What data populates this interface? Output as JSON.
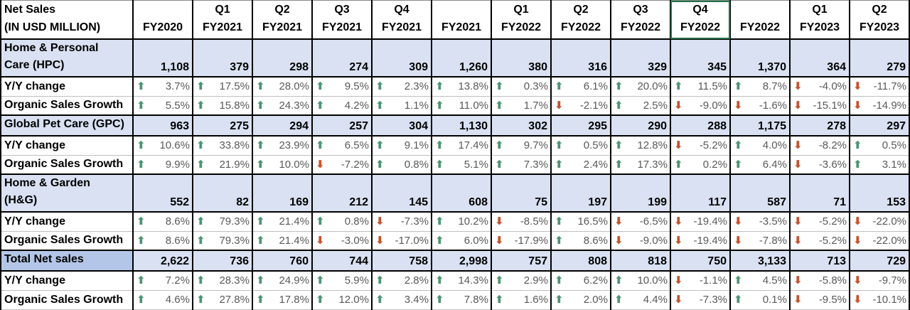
{
  "colors": {
    "up_arrow": "#4D9472",
    "down_arrow": "#C6522D",
    "section_fill": "#D9E1F2",
    "total_label_fill": "#B4C6E7",
    "selection_outline": "#217346",
    "pct_text": "#595959"
  },
  "icons": {
    "up_arrow_icon": "⬆",
    "down_arrow_icon": "⬇"
  },
  "table": {
    "title_line1": "Net Sales",
    "title_line2": "(IN USD MILLION)",
    "row_labels": {
      "yoy": "Y/Y change",
      "organic": "Organic Sales Growth"
    },
    "columns": [
      {
        "q": "",
        "fy": "FY2020"
      },
      {
        "q": "Q1",
        "fy": "FY2021"
      },
      {
        "q": "Q2",
        "fy": "FY2021"
      },
      {
        "q": "Q3",
        "fy": "FY2021"
      },
      {
        "q": "Q4",
        "fy": "FY2021"
      },
      {
        "q": "",
        "fy": "FY2021"
      },
      {
        "q": "Q1",
        "fy": "FY2022"
      },
      {
        "q": "Q2",
        "fy": "FY2022"
      },
      {
        "q": "Q3",
        "fy": "FY2022"
      },
      {
        "q": "Q4",
        "fy": "FY2022",
        "selected": true
      },
      {
        "q": "",
        "fy": "FY2022"
      },
      {
        "q": "Q1",
        "fy": "FY2023"
      },
      {
        "q": "Q2",
        "fy": "FY2023"
      }
    ],
    "sections": [
      {
        "id": "hpc",
        "label_lines": [
          "Home & Personal",
          "Care (HPC)"
        ],
        "values": [
          "1,108",
          "379",
          "298",
          "274",
          "309",
          "1,260",
          "380",
          "316",
          "329",
          "345",
          "1,370",
          "364",
          "279"
        ],
        "yoy": [
          {
            "dir": "up",
            "v": "3.7%"
          },
          {
            "dir": "up",
            "v": "17.5%"
          },
          {
            "dir": "up",
            "v": "28.0%"
          },
          {
            "dir": "up",
            "v": "9.5%"
          },
          {
            "dir": "up",
            "v": "2.3%"
          },
          {
            "dir": "up",
            "v": "13.8%"
          },
          {
            "dir": "up",
            "v": "0.3%"
          },
          {
            "dir": "up",
            "v": "6.1%"
          },
          {
            "dir": "up",
            "v": "20.0%"
          },
          {
            "dir": "up",
            "v": "11.5%"
          },
          {
            "dir": "up",
            "v": "8.7%"
          },
          {
            "dir": "down",
            "v": "-4.0%"
          },
          {
            "dir": "down",
            "v": "-11.7%"
          }
        ],
        "organic": [
          {
            "dir": "up",
            "v": "5.5%"
          },
          {
            "dir": "up",
            "v": "15.8%"
          },
          {
            "dir": "up",
            "v": "24.3%"
          },
          {
            "dir": "up",
            "v": "4.2%"
          },
          {
            "dir": "up",
            "v": "1.1%"
          },
          {
            "dir": "up",
            "v": "11.0%"
          },
          {
            "dir": "up",
            "v": "1.7%"
          },
          {
            "dir": "down",
            "v": "-2.1%"
          },
          {
            "dir": "up",
            "v": "2.5%"
          },
          {
            "dir": "down",
            "v": "-9.0%"
          },
          {
            "dir": "down",
            "v": "-1.6%"
          },
          {
            "dir": "down",
            "v": "-15.1%"
          },
          {
            "dir": "down",
            "v": "-14.9%"
          }
        ]
      },
      {
        "id": "gpc",
        "label_lines": [
          "Global Pet Care (GPC)"
        ],
        "values": [
          "963",
          "275",
          "294",
          "257",
          "304",
          "1,130",
          "302",
          "295",
          "290",
          "288",
          "1,175",
          "278",
          "297"
        ],
        "yoy": [
          {
            "dir": "up",
            "v": "10.6%"
          },
          {
            "dir": "up",
            "v": "33.8%"
          },
          {
            "dir": "up",
            "v": "23.9%"
          },
          {
            "dir": "up",
            "v": "6.5%"
          },
          {
            "dir": "up",
            "v": "9.1%"
          },
          {
            "dir": "up",
            "v": "17.4%"
          },
          {
            "dir": "up",
            "v": "9.7%"
          },
          {
            "dir": "up",
            "v": "0.5%"
          },
          {
            "dir": "up",
            "v": "12.8%"
          },
          {
            "dir": "down",
            "v": "-5.2%"
          },
          {
            "dir": "up",
            "v": "4.0%"
          },
          {
            "dir": "down",
            "v": "-8.2%"
          },
          {
            "dir": "up",
            "v": "0.5%"
          }
        ],
        "organic": [
          {
            "dir": "up",
            "v": "9.9%"
          },
          {
            "dir": "up",
            "v": "21.9%"
          },
          {
            "dir": "up",
            "v": "10.0%"
          },
          {
            "dir": "down",
            "v": "-7.2%"
          },
          {
            "dir": "up",
            "v": "0.8%"
          },
          {
            "dir": "up",
            "v": "5.1%"
          },
          {
            "dir": "up",
            "v": "7.3%"
          },
          {
            "dir": "up",
            "v": "2.4%"
          },
          {
            "dir": "up",
            "v": "17.3%"
          },
          {
            "dir": "up",
            "v": "0.2%"
          },
          {
            "dir": "up",
            "v": "6.4%"
          },
          {
            "dir": "down",
            "v": "-3.6%"
          },
          {
            "dir": "up",
            "v": "3.1%"
          }
        ]
      },
      {
        "id": "hg",
        "label_lines": [
          "Home & Garden",
          "(H&G)"
        ],
        "values": [
          "552",
          "82",
          "169",
          "212",
          "145",
          "608",
          "75",
          "197",
          "199",
          "117",
          "587",
          "71",
          "153"
        ],
        "yoy": [
          {
            "dir": "up",
            "v": "8.6%"
          },
          {
            "dir": "up",
            "v": "79.3%"
          },
          {
            "dir": "up",
            "v": "21.4%"
          },
          {
            "dir": "up",
            "v": "0.8%"
          },
          {
            "dir": "down",
            "v": "-7.3%"
          },
          {
            "dir": "up",
            "v": "10.2%"
          },
          {
            "dir": "down",
            "v": "-8.5%"
          },
          {
            "dir": "up",
            "v": "16.5%"
          },
          {
            "dir": "down",
            "v": "-6.5%"
          },
          {
            "dir": "down",
            "v": "-19.4%"
          },
          {
            "dir": "down",
            "v": "-3.5%"
          },
          {
            "dir": "down",
            "v": "-5.2%"
          },
          {
            "dir": "down",
            "v": "-22.0%"
          }
        ],
        "organic": [
          {
            "dir": "up",
            "v": "8.6%"
          },
          {
            "dir": "up",
            "v": "79.3%"
          },
          {
            "dir": "up",
            "v": "21.4%"
          },
          {
            "dir": "down",
            "v": "-3.0%"
          },
          {
            "dir": "down",
            "v": "-17.0%"
          },
          {
            "dir": "up",
            "v": "6.0%"
          },
          {
            "dir": "down",
            "v": "-17.9%"
          },
          {
            "dir": "up",
            "v": "8.6%"
          },
          {
            "dir": "down",
            "v": "-9.0%"
          },
          {
            "dir": "down",
            "v": "-19.4%"
          },
          {
            "dir": "down",
            "v": "-7.8%"
          },
          {
            "dir": "down",
            "v": "-5.2%"
          },
          {
            "dir": "down",
            "v": "-22.0%"
          }
        ]
      },
      {
        "id": "total",
        "total": true,
        "label_lines": [
          "Total Net sales"
        ],
        "values": [
          "2,622",
          "736",
          "760",
          "744",
          "758",
          "2,998",
          "757",
          "808",
          "818",
          "750",
          "3,133",
          "713",
          "729"
        ],
        "yoy": [
          {
            "dir": "up",
            "v": "7.2%"
          },
          {
            "dir": "up",
            "v": "28.3%"
          },
          {
            "dir": "up",
            "v": "24.9%"
          },
          {
            "dir": "up",
            "v": "5.9%"
          },
          {
            "dir": "up",
            "v": "2.8%"
          },
          {
            "dir": "up",
            "v": "14.3%"
          },
          {
            "dir": "up",
            "v": "2.9%"
          },
          {
            "dir": "up",
            "v": "6.2%"
          },
          {
            "dir": "up",
            "v": "10.0%"
          },
          {
            "dir": "down",
            "v": "-1.1%"
          },
          {
            "dir": "up",
            "v": "4.5%"
          },
          {
            "dir": "down",
            "v": "-5.8%"
          },
          {
            "dir": "down",
            "v": "-9.7%"
          }
        ],
        "organic": [
          {
            "dir": "up",
            "v": "4.6%"
          },
          {
            "dir": "up",
            "v": "27.8%"
          },
          {
            "dir": "up",
            "v": "17.8%"
          },
          {
            "dir": "up",
            "v": "12.0%"
          },
          {
            "dir": "up",
            "v": "3.4%"
          },
          {
            "dir": "up",
            "v": "7.8%"
          },
          {
            "dir": "up",
            "v": "1.6%"
          },
          {
            "dir": "up",
            "v": "2.0%"
          },
          {
            "dir": "up",
            "v": "4.4%"
          },
          {
            "dir": "down",
            "v": "-7.3%"
          },
          {
            "dir": "up",
            "v": "0.1%"
          },
          {
            "dir": "down",
            "v": "-9.5%"
          },
          {
            "dir": "down",
            "v": "-10.1%"
          }
        ]
      }
    ]
  }
}
